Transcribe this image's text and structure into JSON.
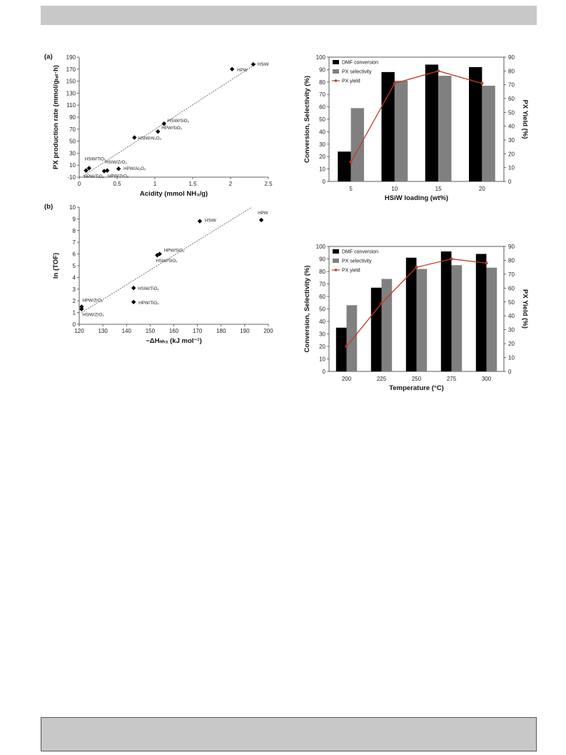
{
  "chart_data": [
    {
      "type": "scatter",
      "panel_label": "(a)",
      "xlabel": "Acidity (mmol NH₃/g)",
      "ylabel": "PX production rate (mmol/gₜₐₜ·h)",
      "xlim": [
        0,
        2.5
      ],
      "ylim": [
        -10,
        190
      ],
      "xticks": [
        "0",
        "0.5",
        "1",
        "1.5",
        "2",
        "2.5"
      ],
      "yticks": [
        "-10",
        "10",
        "30",
        "50",
        "70",
        "90",
        "110",
        "130",
        "150",
        "170",
        "190"
      ],
      "trendline": [
        [
          0.05,
          -8
        ],
        [
          2.35,
          180
        ]
      ],
      "points": [
        {
          "label": "HSiW",
          "x": 2.3,
          "y": 178
        },
        {
          "label": "HPW",
          "x": 2.02,
          "y": 170
        },
        {
          "label": "HSiW/SiO₂",
          "x": 1.12,
          "y": 79
        },
        {
          "label": "HPW/SiO₂",
          "x": 1.04,
          "y": 66
        },
        {
          "label": "HSiW/Al₂O₃",
          "x": 0.73,
          "y": 56
        },
        {
          "label": "HSiW/TiO₂",
          "x": 0.13,
          "y": 5
        },
        {
          "label": "HPW/TiO₂",
          "x": 0.09,
          "y": 1
        },
        {
          "label": "HSiW/ZrO₂",
          "x": 0.37,
          "y": 1
        },
        {
          "label": "HPW/ZrO₂",
          "x": 0.33,
          "y": 0
        },
        {
          "label": "HPW/Al₂O₃",
          "x": 0.52,
          "y": 4
        }
      ]
    },
    {
      "type": "bar",
      "xlabel": "HSiW loading (wt%)",
      "ylabel": "Conversion, Selectivity (%)",
      "y2label": "PX Yield (%)",
      "categories": [
        "5",
        "10",
        "15",
        "20"
      ],
      "ylim": [
        0,
        100
      ],
      "y2lim": [
        0,
        90
      ],
      "yticks": [
        "0",
        "10",
        "20",
        "30",
        "40",
        "50",
        "60",
        "70",
        "80",
        "90",
        "100"
      ],
      "y2ticks": [
        "0",
        "10",
        "20",
        "30",
        "40",
        "50",
        "60",
        "70",
        "80",
        "90"
      ],
      "legend_position": "top-left",
      "series": [
        {
          "name": "DMF conversion",
          "kind": "bar",
          "color": "#000000",
          "values": [
            24,
            88,
            94,
            92
          ]
        },
        {
          "name": "PX selectivity",
          "kind": "bar",
          "color": "#808080",
          "values": [
            59,
            81,
            85,
            77
          ]
        },
        {
          "name": "PX yield",
          "kind": "line",
          "axis": "right",
          "color": "#c0392b",
          "values": [
            14,
            71,
            80,
            71
          ]
        }
      ]
    },
    {
      "type": "scatter",
      "panel_label": "(b)",
      "xlabel": "−ΔHₙₕ₃ (kJ mol⁻¹)",
      "ylabel": "ln (TOF)",
      "xlim": [
        120,
        200
      ],
      "ylim": [
        0,
        10
      ],
      "xticks": [
        "120",
        "130",
        "140",
        "150",
        "160",
        "170",
        "180",
        "190",
        "200"
      ],
      "yticks": [
        "0",
        "1",
        "2",
        "3",
        "4",
        "5",
        "6",
        "7",
        "8",
        "9",
        "10"
      ],
      "trendline": [
        [
          121,
          1.0
        ],
        [
          193,
          10
        ]
      ],
      "points": [
        {
          "label": "HPW",
          "x": 197,
          "y": 8.9
        },
        {
          "label": "HSiW",
          "x": 171,
          "y": 8.8
        },
        {
          "label": "HPW/SiO₂",
          "x": 154,
          "y": 6.0
        },
        {
          "label": "HSiW/SiO₂",
          "x": 153,
          "y": 5.9
        },
        {
          "label": "HSiW/TiO₂",
          "x": 143,
          "y": 3.1
        },
        {
          "label": "HPW/TiO₂",
          "x": 143,
          "y": 1.9
        },
        {
          "label": "HPW/ZrO₂",
          "x": 121,
          "y": 1.5
        },
        {
          "label": "HSiW/ZrO₂",
          "x": 121,
          "y": 1.3
        }
      ]
    },
    {
      "type": "bar",
      "xlabel": "Temperature (°C)",
      "ylabel": "Conversion, Selectivity (%)",
      "y2label": "PX Yield (%)",
      "categories": [
        "200",
        "225",
        "250",
        "275",
        "300"
      ],
      "ylim": [
        0,
        100
      ],
      "y2lim": [
        0,
        90
      ],
      "yticks": [
        "0",
        "10",
        "20",
        "30",
        "40",
        "50",
        "60",
        "70",
        "80",
        "90",
        "100"
      ],
      "y2ticks": [
        "0",
        "10",
        "20",
        "30",
        "40",
        "50",
        "60",
        "70",
        "80",
        "90"
      ],
      "legend_position": "top-left",
      "series": [
        {
          "name": "DMF conversion",
          "kind": "bar",
          "color": "#000000",
          "values": [
            35,
            67,
            91,
            96,
            94
          ]
        },
        {
          "name": "PX selectivity",
          "kind": "bar",
          "color": "#808080",
          "values": [
            53,
            74,
            82,
            85,
            83
          ]
        },
        {
          "name": "PX yield",
          "kind": "line",
          "axis": "right",
          "color": "#c0392b",
          "values": [
            18,
            49,
            75,
            81,
            78
          ]
        }
      ]
    }
  ]
}
